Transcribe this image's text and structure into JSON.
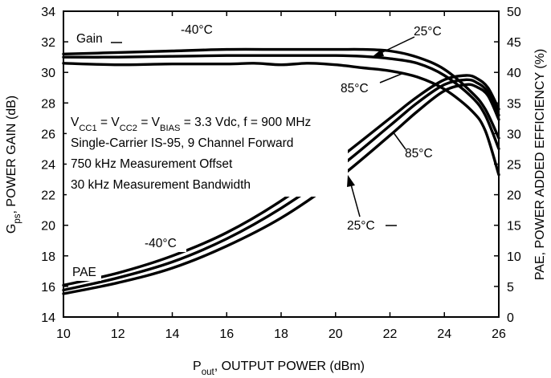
{
  "chart_data": {
    "type": "line",
    "title": "",
    "xlabel": {
      "main": "P",
      "sub": "out",
      "rest": ", OUTPUT POWER (dBm)"
    },
    "ylabel_left": {
      "main": "G",
      "sub": "ps",
      "rest": ", POWER GAIN (dB)"
    },
    "ylabel_right": "PAE, POWER ADDED EFFICIENCY (%)",
    "xlim": [
      10,
      26
    ],
    "ylim_left": [
      14,
      34
    ],
    "ylim_right": [
      0,
      50
    ],
    "grid": false,
    "x_ticks": [
      10,
      12,
      14,
      16,
      18,
      20,
      22,
      24,
      26
    ],
    "y_ticks_left": [
      14,
      16,
      18,
      20,
      22,
      24,
      26,
      28,
      30,
      32,
      34
    ],
    "y_ticks_right": [
      0,
      5,
      10,
      15,
      20,
      25,
      30,
      35,
      40,
      45,
      50
    ],
    "conditions": [
      {
        "parts": [
          {
            "t": "V"
          },
          {
            "t": "CC1",
            "sub": true
          },
          {
            "t": " = V"
          },
          {
            "t": "CC2",
            "sub": true
          },
          {
            "t": " = V"
          },
          {
            "t": "BIAS",
            "sub": true
          },
          {
            "t": " = 3.3 Vdc, f = 900 MHz"
          }
        ]
      },
      {
        "parts": [
          {
            "t": "Single-Carrier IS-95, 9 Channel Forward"
          }
        ]
      },
      {
        "parts": [
          {
            "t": "750 kHz Measurement Offset"
          }
        ]
      },
      {
        "parts": [
          {
            "t": "30 kHz Measurement Bandwidth"
          }
        ]
      }
    ],
    "group_labels": {
      "gain": "Gain",
      "pae": "PAE"
    },
    "temp_labels": {
      "gain_minus40": "-40°C",
      "gain_25": "25°C",
      "gain_85": "85°C",
      "pae_minus40": "-40°C",
      "pae_25": "25°C",
      "pae_85": "85°C"
    },
    "series": [
      {
        "name": "Gain -40°C",
        "axis": "left",
        "x": [
          10,
          12,
          14,
          16,
          18,
          20,
          21,
          22,
          23,
          24,
          25,
          25.5,
          26
        ],
        "y": [
          31.2,
          31.3,
          31.4,
          31.5,
          31.5,
          31.5,
          31.5,
          31.4,
          31.0,
          30.2,
          28.7,
          27.6,
          25.7
        ]
      },
      {
        "name": "Gain 25°C",
        "axis": "left",
        "x": [
          10,
          12,
          14,
          16,
          18,
          20,
          21,
          22,
          23,
          24,
          25,
          25.5,
          26
        ],
        "y": [
          31.0,
          31.0,
          31.05,
          31.1,
          31.1,
          31.1,
          31.05,
          30.9,
          30.6,
          29.8,
          28.4,
          27.2,
          25.0
        ]
      },
      {
        "name": "Gain 85°C",
        "axis": "left",
        "x": [
          10,
          12,
          14,
          16,
          17,
          18,
          19,
          20,
          21,
          22,
          23,
          24,
          25,
          25.5,
          26
        ],
        "y": [
          30.6,
          30.5,
          30.55,
          30.55,
          30.6,
          30.5,
          30.6,
          30.5,
          30.3,
          30.1,
          29.7,
          28.9,
          27.5,
          26.2,
          23.3
        ]
      },
      {
        "name": "PAE -40°C",
        "axis": "right",
        "x": [
          10,
          12,
          14,
          16,
          18,
          20,
          22,
          23,
          24,
          24.8,
          25.2,
          25.6,
          26
        ],
        "y": [
          5.2,
          7.2,
          10.0,
          13.8,
          19.0,
          25.5,
          32.5,
          36.0,
          38.8,
          39.5,
          39.0,
          37.5,
          34.0
        ]
      },
      {
        "name": "PAE 25°C",
        "axis": "right",
        "x": [
          10,
          12,
          14,
          16,
          18,
          20,
          22,
          23,
          24,
          24.8,
          25.2,
          25.6,
          26
        ],
        "y": [
          4.4,
          6.4,
          9.0,
          12.8,
          17.8,
          24.0,
          31.3,
          35.0,
          38.0,
          38.8,
          38.3,
          36.8,
          33.0
        ]
      },
      {
        "name": "PAE 85°C",
        "axis": "right",
        "x": [
          10,
          12,
          14,
          16,
          18,
          20,
          22,
          23,
          24,
          24.8,
          25.2,
          25.6,
          26
        ],
        "y": [
          3.8,
          5.6,
          8.0,
          11.6,
          16.2,
          22.3,
          29.7,
          33.6,
          37.0,
          38.0,
          37.6,
          36.2,
          32.3
        ]
      }
    ]
  }
}
